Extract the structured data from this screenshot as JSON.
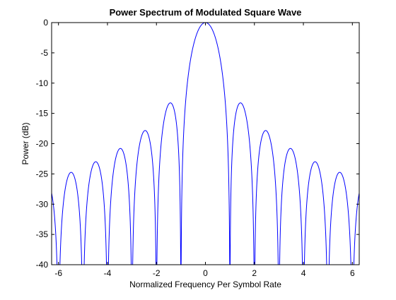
{
  "chart_data": {
    "type": "line",
    "title": "Power Spectrum of Modulated Square Wave",
    "xlabel": "Normalized Frequency Per Symbol Rate",
    "ylabel": "Power (dB)",
    "xlim": [
      -6.28,
      6.28
    ],
    "ylim": [
      -40,
      0
    ],
    "xticks": [
      -6,
      -4,
      -2,
      0,
      2,
      4,
      6
    ],
    "yticks": [
      0,
      -5,
      -10,
      -15,
      -20,
      -25,
      -30,
      -35,
      -40
    ],
    "grid": false,
    "legend": "none",
    "series": [
      {
        "function": "10*log10(sinc(x)^2)",
        "x_range": [
          -6.28,
          6.28
        ],
        "color": "#0000ff",
        "lobe_peaks": [
          {
            "x": 0,
            "y": 0
          },
          {
            "x": 1.43,
            "y": -13.3
          },
          {
            "x": -1.43,
            "y": -13.3
          },
          {
            "x": 2.46,
            "y": -17.8
          },
          {
            "x": -2.46,
            "y": -17.8
          },
          {
            "x": 3.47,
            "y": -20.8
          },
          {
            "x": -3.47,
            "y": -20.8
          },
          {
            "x": 4.48,
            "y": -23.0
          },
          {
            "x": -4.48,
            "y": -23.0
          },
          {
            "x": 5.48,
            "y": -24.7
          },
          {
            "x": -5.48,
            "y": -24.7
          }
        ]
      }
    ]
  }
}
